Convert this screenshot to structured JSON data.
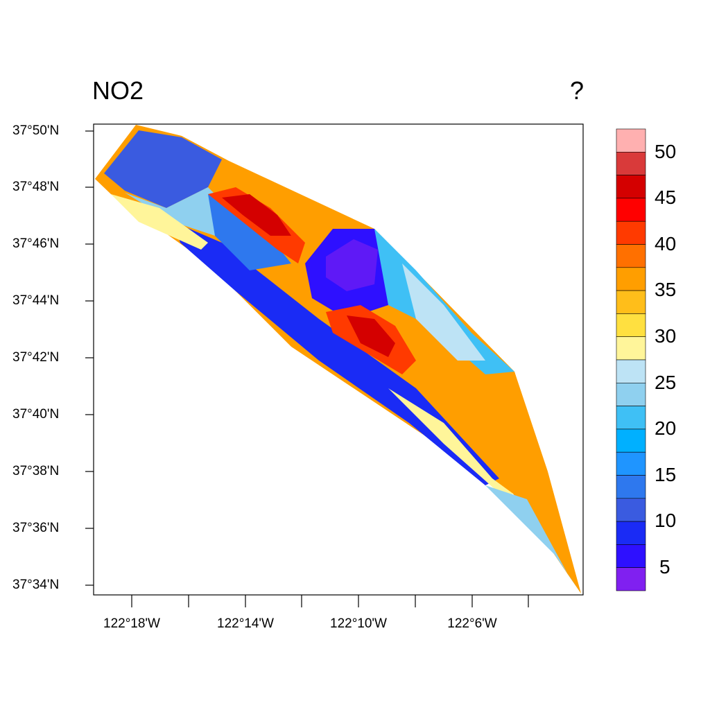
{
  "map": {
    "title": "NO2",
    "units": "?",
    "latitude_labels": [
      "37°50'N",
      "37°48'N",
      "37°46'N",
      "37°44'N",
      "37°42'N",
      "37°40'N",
      "37°38'N",
      "37°36'N",
      "37°34'N"
    ],
    "longitude_labels": [
      "122°18'W",
      "122°14'W",
      "122°10'W",
      "122°6'W"
    ]
  },
  "colorbar": {
    "tick_labels": [
      "50",
      "45",
      "40",
      "35",
      "30",
      "25",
      "20",
      "15",
      "10",
      "5"
    ],
    "colors": [
      "#ffb0b0",
      "#d93a3a",
      "#d40000",
      "#ff0000",
      "#ff3a00",
      "#ff7000",
      "#ff9e00",
      "#ffbe1a",
      "#ffe040",
      "#fff59a",
      "#bde3f5",
      "#8fd0ef",
      "#3fc0f5",
      "#00b0ff",
      "#1f95ff",
      "#2e78ee",
      "#3a5be0",
      "#1a2bf5",
      "#2e10ff",
      "#8020f0"
    ]
  }
}
